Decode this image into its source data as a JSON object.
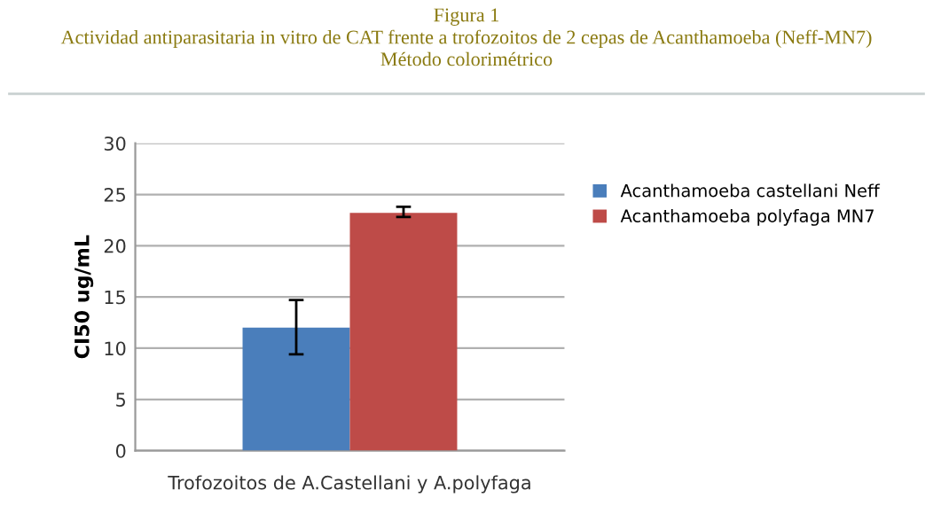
{
  "chart_data": {
    "type": "bar",
    "title": "Figura 1\nActividad antiparasitaria in vitro de CAT frente a trofozoitos de 2 cepas de Acanthamoeba (Neff-MN7)\nMétodo colorimétrico",
    "ylabel": "CI50 ug/mL",
    "categories": [
      "Trofozoitos de A.Castellani y A.polyfaga"
    ],
    "series": [
      {
        "name": "Acanthamoeba castellani Neff",
        "color": "#4a7ebb",
        "values": [
          12.0
        ],
        "errors": [
          [
            9.4,
            14.7
          ]
        ]
      },
      {
        "name": "Acanthamoeba polyfaga MN7",
        "color": "#be4b48",
        "values": [
          23.2
        ],
        "errors": [
          [
            22.8,
            23.8
          ]
        ]
      }
    ],
    "ylim": [
      0,
      30
    ],
    "yticks": [
      0,
      5,
      10,
      15,
      20,
      25,
      30
    ],
    "grid": "y",
    "legend": "right"
  }
}
